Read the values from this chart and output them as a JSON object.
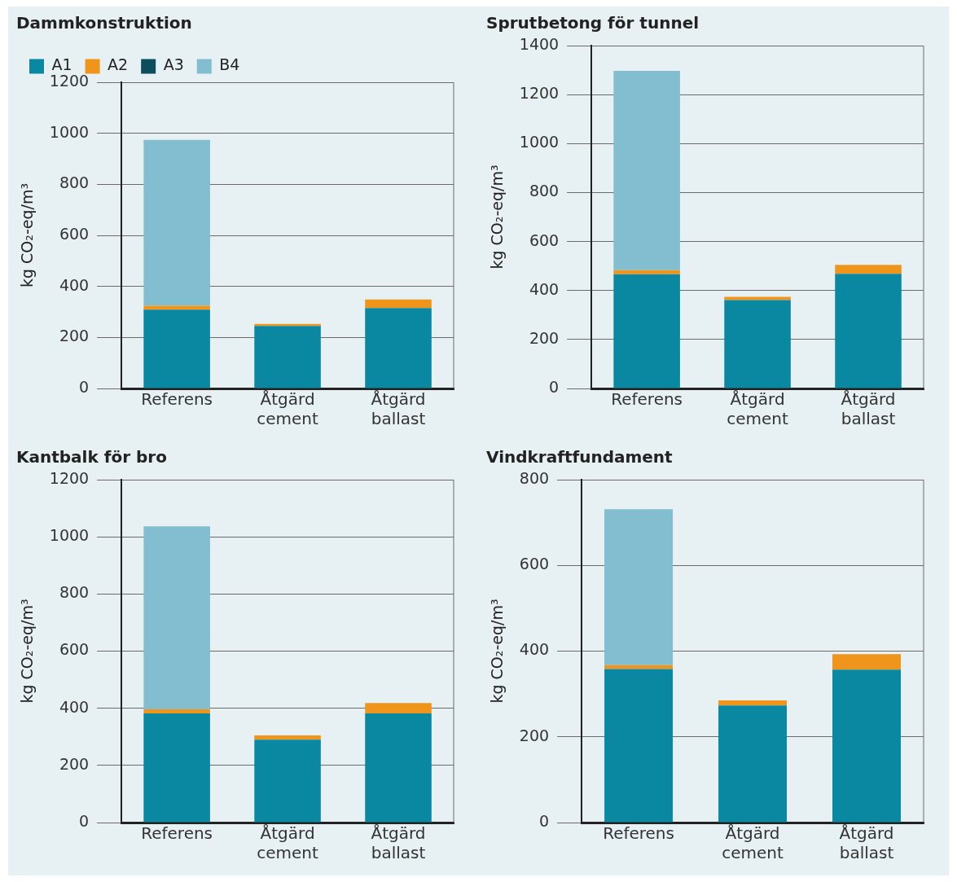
{
  "chart_data": [
    {
      "type": "bar",
      "title": "Dammkonstruktion",
      "ylabel": "kg CO₂-eq/m³",
      "categories": [
        "Referens",
        "Åtgärd cement",
        "Åtgärd ballast"
      ],
      "stacked": true,
      "ylim": [
        0,
        1200
      ],
      "yticks": [
        0,
        200,
        400,
        600,
        800,
        1000,
        1200
      ],
      "grid": "y",
      "legend": "top left",
      "series": [
        {
          "name": "A1",
          "color": "#0a88a2",
          "values": [
            309,
            245,
            315
          ]
        },
        {
          "name": "A2",
          "color": "#f0951c",
          "values": [
            15,
            8,
            34
          ]
        },
        {
          "name": "A3",
          "color": "#0c4e5e",
          "values": [
            0,
            0,
            0
          ]
        },
        {
          "name": "B4",
          "color": "#82bed0",
          "values": [
            650,
            0,
            0
          ]
        }
      ]
    },
    {
      "type": "bar",
      "title": "Sprutbetong för tunnel",
      "ylabel": "kg CO₂-eq/m³",
      "categories": [
        "Referens",
        "Åtgärd cement",
        "Åtgärd ballast"
      ],
      "stacked": true,
      "ylim": [
        0,
        1400
      ],
      "yticks": [
        0,
        200,
        400,
        600,
        800,
        1000,
        1200,
        1400
      ],
      "grid": "y",
      "series": [
        {
          "color": "#0a88a2",
          "values": [
            466,
            361,
            468
          ]
        },
        {
          "color": "#f0951c",
          "values": [
            17,
            13,
            37
          ]
        },
        {
          "color": "#0c4e5e",
          "values": [
            0,
            0,
            0
          ]
        },
        {
          "color": "#82bed0",
          "values": [
            814,
            0,
            0
          ]
        }
      ]
    },
    {
      "type": "bar",
      "title": "Kantbalk för bro",
      "ylabel": "kg CO₂-eq/m³",
      "categories": [
        "Referens",
        "Åtgärd cement",
        "Åtgärd ballast"
      ],
      "stacked": true,
      "ylim": [
        0,
        1200
      ],
      "yticks": [
        0,
        200,
        400,
        600,
        800,
        1000,
        1200
      ],
      "grid": "y",
      "series": [
        {
          "color": "#0a88a2",
          "values": [
            382,
            290,
            382
          ]
        },
        {
          "color": "#f0951c",
          "values": [
            14,
            15,
            36
          ]
        },
        {
          "color": "#0c4e5e",
          "values": [
            0,
            0,
            0
          ]
        },
        {
          "color": "#82bed0",
          "values": [
            641,
            0,
            0
          ]
        }
      ]
    },
    {
      "type": "bar",
      "title": "Vindkraftfundament",
      "ylabel": "kg CO₂-eq/m³",
      "categories": [
        "Referens",
        "Åtgärd cement",
        "Åtgärd ballast"
      ],
      "stacked": true,
      "ylim": [
        0,
        800
      ],
      "yticks": [
        0,
        200,
        400,
        600,
        800
      ],
      "grid": "y",
      "series": [
        {
          "color": "#0a88a2",
          "values": [
            358,
            273,
            357
          ]
        },
        {
          "color": "#f0951c",
          "values": [
            9,
            12,
            36
          ]
        },
        {
          "color": "#0c4e5e",
          "values": [
            0,
            0,
            0
          ]
        },
        {
          "color": "#82bed0",
          "values": [
            364,
            0,
            0
          ]
        }
      ]
    }
  ]
}
